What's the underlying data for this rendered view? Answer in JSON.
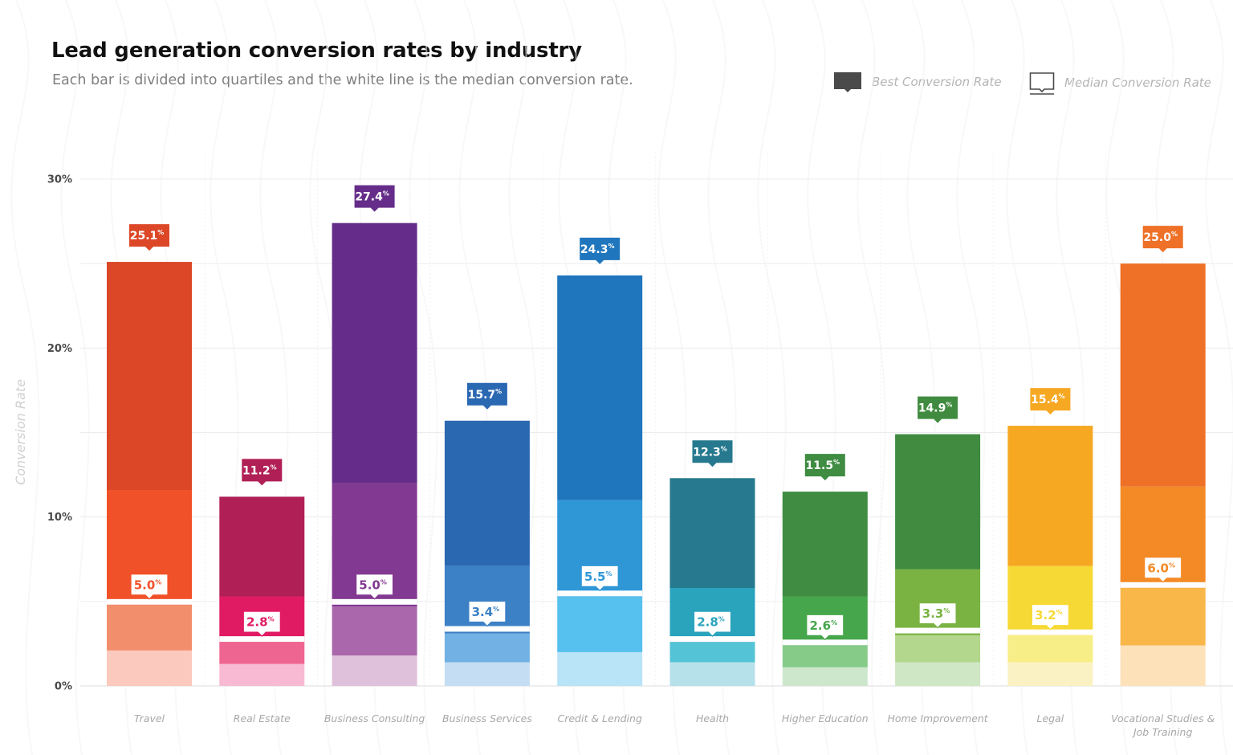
{
  "title": "Lead generation conversion rates by industry",
  "subtitle": "Each bar is divided into quartiles and the white line is the median conversion rate.",
  "legend": {
    "best_label": "Best Conversion Rate",
    "median_label": "Median Conversion Rate",
    "best_icon": "filled-callout-icon",
    "median_icon": "outline-callout-icon",
    "best_color": "#4a4a4a",
    "median_color": "#4a4a4a"
  },
  "chart_data": {
    "type": "bar",
    "ylabel": "Conversion Rate",
    "ylim": [
      0,
      30
    ],
    "yticks": [
      0,
      10,
      20,
      30
    ],
    "ytick_labels": [
      "0%",
      "10%",
      "20%",
      "30%"
    ],
    "grid": true,
    "legend_position": "top-right",
    "categories": [
      {
        "label": "Travel",
        "lines": [
          "Travel"
        ],
        "best": 25.1,
        "median": 5.0,
        "best_label": "25.1",
        "median_label": "5.0",
        "quartiles": [
          2.1,
          4.8,
          11.6
        ],
        "colors": [
          "#fbc9bd",
          "#f38e6c",
          "#f15128",
          "#dc4727"
        ],
        "label_color": "#dc4727"
      },
      {
        "label": "Real Estate",
        "lines": [
          "Real Estate"
        ],
        "best": 11.2,
        "median": 2.8,
        "best_label": "11.2",
        "median_label": "2.8",
        "quartiles": [
          1.3,
          2.6,
          5.3
        ],
        "colors": [
          "#f8bad2",
          "#ef6592",
          "#e01b64",
          "#b01f55"
        ],
        "label_color": "#b01f55"
      },
      {
        "label": "Business Consulting",
        "lines": [
          "Business Consulting"
        ],
        "best": 27.4,
        "median": 5.0,
        "best_label": "27.4",
        "median_label": "5.0",
        "quartiles": [
          1.8,
          4.7,
          12.0
        ],
        "colors": [
          "#dfc1db",
          "#aa67ab",
          "#823991",
          "#652d89"
        ],
        "label_color": "#652d89"
      },
      {
        "label": "Business Services",
        "lines": [
          "Business Services"
        ],
        "best": 15.7,
        "median": 3.4,
        "best_label": "15.7",
        "median_label": "3.4",
        "quartiles": [
          1.4,
          3.1,
          7.1
        ],
        "colors": [
          "#c4ddf3",
          "#71b1e4",
          "#3c80c5",
          "#2b68b2"
        ],
        "label_color": "#2b68b2"
      },
      {
        "label": "Credit & Lending",
        "lines": [
          "Credit & Lending"
        ],
        "best": 24.3,
        "median": 5.5,
        "best_label": "24.3",
        "median_label": "5.5",
        "quartiles": [
          2.0,
          5.3,
          11.0
        ],
        "colors": [
          "#b9e3f7",
          "#56c1ee",
          "#3097d7",
          "#1f76bd"
        ],
        "label_color": "#1f76bd"
      },
      {
        "label": "Health",
        "lines": [
          "Health"
        ],
        "best": 12.3,
        "median": 2.8,
        "best_label": "12.3",
        "median_label": "2.8",
        "quartiles": [
          1.4,
          2.6,
          5.8
        ],
        "colors": [
          "#b6e1ea",
          "#55c3d6",
          "#2aa3bd",
          "#26798e"
        ],
        "label_color": "#26798e"
      },
      {
        "label": "Higher Education",
        "lines": [
          "Higher Education"
        ],
        "best": 11.5,
        "median": 2.6,
        "best_label": "11.5",
        "median_label": "2.6",
        "quartiles": [
          1.1,
          2.4,
          5.3
        ],
        "colors": [
          "#cde7cc",
          "#87cb89",
          "#46a64b",
          "#3f8c42"
        ],
        "label_color": "#3f8c42"
      },
      {
        "label": "Home Improvement",
        "lines": [
          "Home Improvement"
        ],
        "best": 14.9,
        "median": 3.3,
        "best_label": "14.9",
        "median_label": "3.3",
        "quartiles": [
          1.4,
          3.0,
          6.9
        ],
        "colors": [
          "#cfe7c4",
          "#b2d78d",
          "#7ab342",
          "#408b3f"
        ],
        "label_color": "#408b3f"
      },
      {
        "label": "Legal",
        "lines": [
          "Legal"
        ],
        "best": 15.4,
        "median": 3.2,
        "best_label": "15.4",
        "median_label": "3.2",
        "quartiles": [
          1.4,
          3.0,
          7.1
        ],
        "colors": [
          "#fbf2c3",
          "#f8ee87",
          "#f7d935",
          "#f6a823"
        ],
        "label_color": "#f6a823"
      },
      {
        "label": "Vocational Studies & Job Training",
        "lines": [
          "Vocational Studies &",
          "Job Training"
        ],
        "best": 25.0,
        "median": 6.0,
        "best_label": "25.0",
        "median_label": "6.0",
        "quartiles": [
          2.4,
          5.8,
          11.8
        ],
        "colors": [
          "#fde1b9",
          "#f9b649",
          "#f48a26",
          "#ee7127"
        ],
        "label_color": "#ee7127"
      }
    ]
  }
}
